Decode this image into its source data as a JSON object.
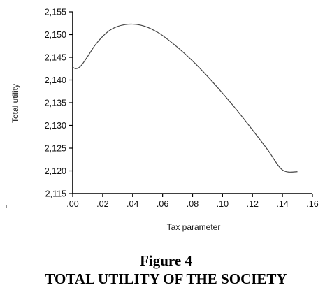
{
  "chart_data": {
    "type": "line",
    "title": "",
    "xlabel": "Tax parameter",
    "ylabel": "Total utility",
    "xlim": [
      0.0,
      0.16
    ],
    "ylim": [
      2115,
      2155
    ],
    "x_ticks": [
      0.0,
      0.02,
      0.04,
      0.06,
      0.08,
      0.1,
      0.12,
      0.14,
      0.16
    ],
    "x_tick_labels": [
      ".00",
      ".02",
      ".04",
      ".06",
      ".08",
      ".10",
      ".12",
      ".14",
      ".16"
    ],
    "y_ticks": [
      2115,
      2120,
      2125,
      2130,
      2135,
      2140,
      2145,
      2150,
      2155
    ],
    "y_tick_labels": [
      "2,115",
      "2,120",
      "2,125",
      "2,130",
      "2,135",
      "2,140",
      "2,145",
      "2,150",
      "2,155"
    ],
    "grid": false,
    "legend": "none",
    "series": [
      {
        "color": "#444444",
        "x": [
          0.0,
          0.002,
          0.004,
          0.006,
          0.01,
          0.015,
          0.02,
          0.025,
          0.03,
          0.035,
          0.04,
          0.045,
          0.05,
          0.055,
          0.06,
          0.07,
          0.08,
          0.09,
          0.1,
          0.11,
          0.12,
          0.13,
          0.14,
          0.15
        ],
        "y": [
          2142.8,
          2142.5,
          2142.7,
          2143.3,
          2145.2,
          2147.7,
          2149.6,
          2151.0,
          2151.8,
          2152.2,
          2152.3,
          2152.1,
          2151.6,
          2150.8,
          2149.8,
          2147.2,
          2144.2,
          2140.8,
          2137.1,
          2133.2,
          2129.0,
          2124.7,
          2120.2,
          2119.8
        ]
      }
    ]
  },
  "caption": {
    "figure_number": "Figure 4",
    "figure_title": "TOTAL UTILITY OF THE SOCIETY"
  },
  "stray_mark": "ı"
}
